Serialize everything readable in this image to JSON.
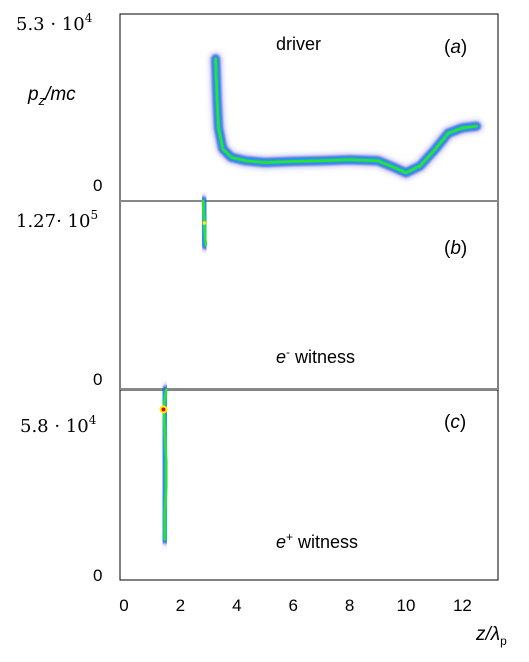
{
  "chart_data": [
    {
      "type": "scatter",
      "panel_label": "(a)",
      "annotation": "driver",
      "ylabel": "pz/mc",
      "y_top_label": "5.3 · 10^4",
      "y_bottom_label": "0",
      "xlim": [
        0,
        13
      ],
      "ylim": [
        0,
        53000
      ],
      "series": [
        {
          "values": [
            {
              "x": 3.25,
              "y": 40000
            },
            {
              "x": 3.3,
              "y": 28000
            },
            {
              "x": 3.35,
              "y": 20000
            },
            {
              "x": 3.5,
              "y": 14000
            },
            {
              "x": 3.8,
              "y": 11500
            },
            {
              "x": 4.3,
              "y": 10500
            },
            {
              "x": 5.0,
              "y": 10000
            },
            {
              "x": 6.0,
              "y": 10300
            },
            {
              "x": 7.0,
              "y": 10500
            },
            {
              "x": 8.0,
              "y": 10800
            },
            {
              "x": 9.0,
              "y": 10500
            },
            {
              "x": 9.6,
              "y": 8500
            },
            {
              "x": 10.0,
              "y": 7000
            },
            {
              "x": 10.5,
              "y": 9000
            },
            {
              "x": 11.0,
              "y": 13500
            },
            {
              "x": 11.5,
              "y": 18500
            },
            {
              "x": 12.0,
              "y": 20000
            },
            {
              "x": 12.5,
              "y": 20500
            }
          ]
        }
      ]
    },
    {
      "type": "scatter",
      "panel_label": "(b)",
      "annotation_main": "e",
      "annotation_sup": "-",
      "annotation_rest": " witness",
      "y_top_label": "1.27· 10^5",
      "y_bottom_label": "0",
      "xlim": [
        0,
        13
      ],
      "ylim": [
        0,
        127000
      ],
      "series": [
        {
          "values": [
            {
              "x": 2.8,
              "y": 127000
            },
            {
              "x": 2.82,
              "y": 120000
            },
            {
              "x": 2.85,
              "y": 112000
            },
            {
              "x": 2.87,
              "y": 105000
            },
            {
              "x": 2.9,
              "y": 97000
            }
          ]
        }
      ]
    },
    {
      "type": "scatter",
      "panel_label": "(c)",
      "annotation_main": "e",
      "annotation_sup": "+",
      "annotation_rest": " witness",
      "y_top_label": "5.8 · 10^4",
      "y_bottom_label": "0",
      "xlim": [
        0,
        13
      ],
      "ylim": [
        0,
        58000
      ],
      "series": [
        {
          "values": [
            {
              "x": 1.5,
              "y": 58000
            },
            {
              "x": 1.4,
              "y": 52000
            },
            {
              "x": 1.45,
              "y": 45000
            },
            {
              "x": 1.5,
              "y": 36000
            },
            {
              "x": 1.5,
              "y": 28000
            },
            {
              "x": 1.45,
              "y": 20000
            },
            {
              "x": 1.45,
              "y": 12000
            }
          ]
        }
      ]
    }
  ],
  "axes": {
    "x_ticks": [
      "0",
      "2",
      "4",
      "6",
      "8",
      "10",
      "12"
    ],
    "x_tick_values": [
      0,
      2,
      4,
      6,
      8,
      10,
      12
    ],
    "xlabel": "z/λp"
  },
  "colors": {
    "low": "#1a2fd0",
    "mid": "#00c8e8",
    "high": "#2fe02f",
    "peak": "#ffee00",
    "core": "#e80000"
  }
}
